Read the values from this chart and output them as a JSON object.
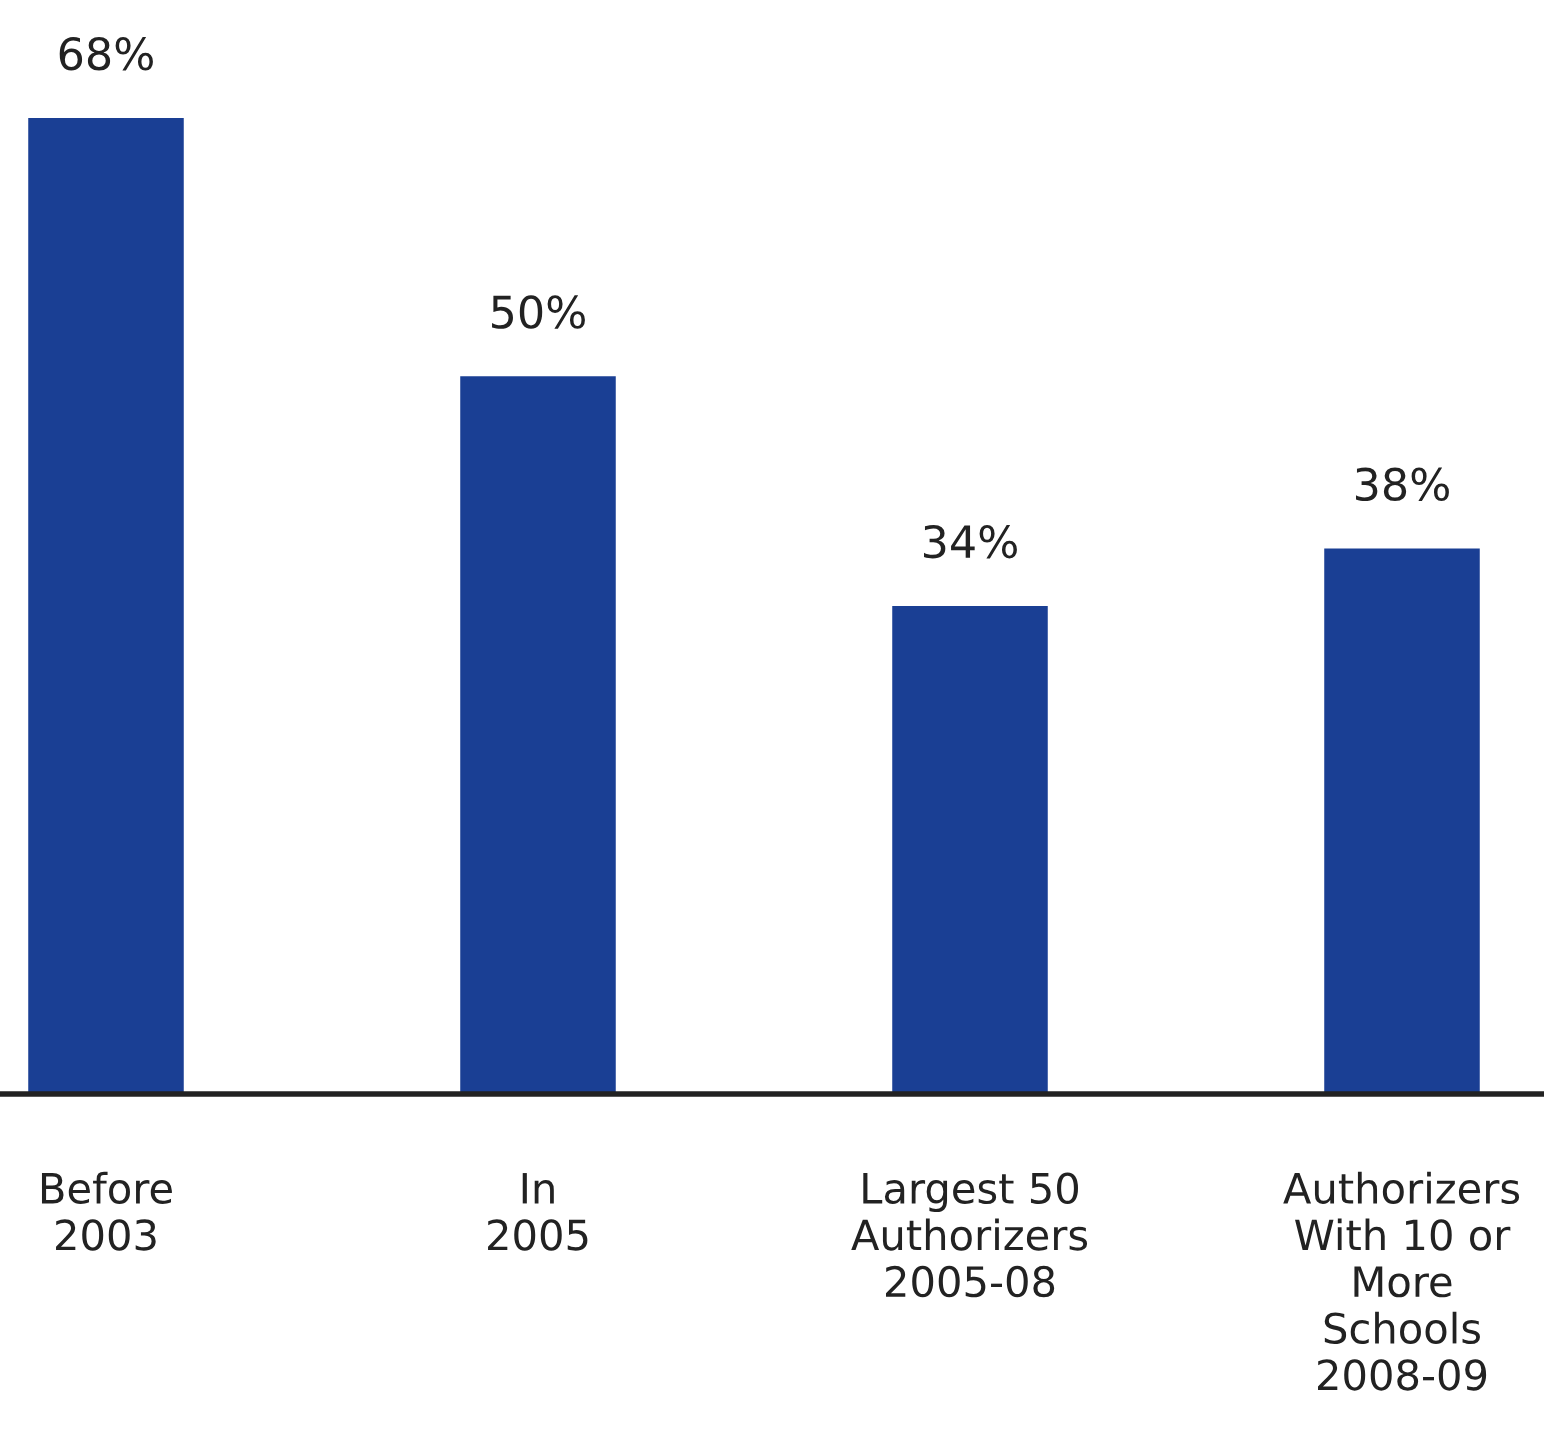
{
  "chart_data": {
    "type": "bar",
    "categories": [
      "Before\n2003",
      "In\n2005",
      "Largest 50\nAuthorizers\n2005-08",
      "Authorizers\nWith 10 or\nMore\nSchools\n2008-09"
    ],
    "values": [
      68,
      50,
      34,
      38
    ],
    "value_labels": [
      "68%",
      "50%",
      "34%",
      "38%"
    ],
    "color": "#1a3f94",
    "grid": false,
    "legend": false
  }
}
